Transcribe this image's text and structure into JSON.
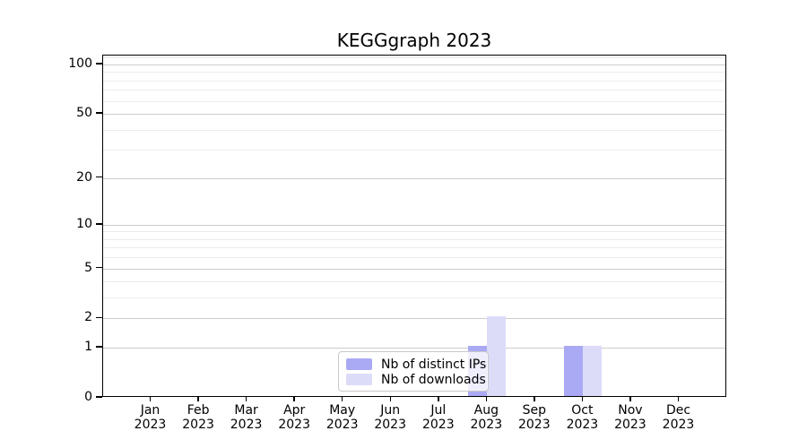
{
  "chart_data": {
    "type": "bar",
    "title": "KEGGgraph 2023",
    "categories": [
      "Jan",
      "Feb",
      "Mar",
      "Apr",
      "May",
      "Jun",
      "Jul",
      "Aug",
      "Sep",
      "Oct",
      "Nov",
      "Dec"
    ],
    "year_label": "2023",
    "series": [
      {
        "name": "Nb of distinct IPs",
        "color": "#aaaaf4",
        "values": [
          0,
          0,
          0,
          0,
          0,
          0,
          0,
          1,
          0,
          1,
          0,
          0
        ]
      },
      {
        "name": "Nb of downloads",
        "color": "#dcdcf9",
        "values": [
          0,
          0,
          0,
          0,
          0,
          0,
          0,
          2,
          0,
          1,
          0,
          0
        ]
      }
    ],
    "yscale": "log1p",
    "ylim": [
      0,
      113.3
    ],
    "yticks": [
      0,
      1,
      2,
      5,
      10,
      20,
      50,
      100
    ],
    "minor_gridlines": [
      3,
      4,
      6,
      7,
      8,
      9,
      30,
      40,
      60,
      70,
      80,
      90,
      110
    ],
    "grid": "horizontal",
    "legend_position": "lower-center",
    "colors": {
      "major_grid": "#cccccc",
      "minor_grid": "#ebebeb",
      "axis": "#000000",
      "text": "#000000",
      "background": "#ffffff"
    }
  }
}
